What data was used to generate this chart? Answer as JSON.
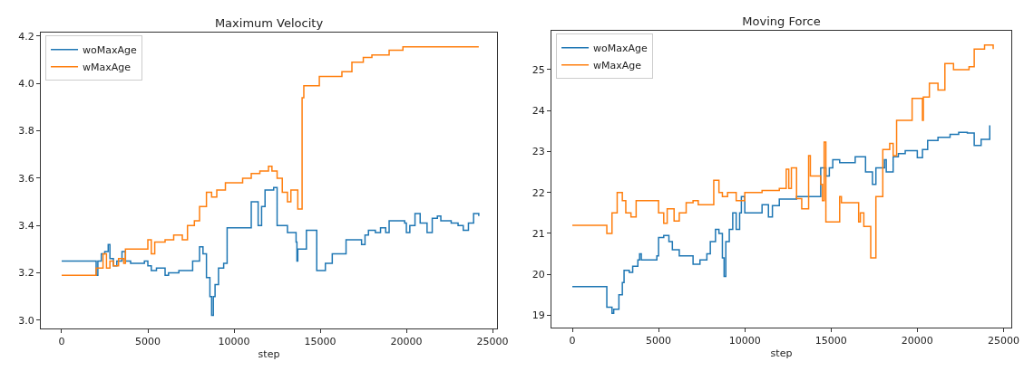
{
  "chart_data": [
    {
      "type": "step",
      "title": "Maximum Velocity",
      "xlabel": "step",
      "xlim": [
        -1210,
        25260
      ],
      "xticks": [
        0,
        5000,
        10000,
        15000,
        20000,
        25000
      ],
      "ylim": [
        2.965,
        4.215
      ],
      "yticks": [
        {
          "value": 3,
          "label": "3.0"
        },
        3.2,
        3.4,
        3.6,
        3.8,
        {
          "value": 4,
          "label": "4.0"
        },
        4.2
      ],
      "grid": false,
      "legend": "top left",
      "series": [
        {
          "name": "woMaxAge",
          "color": "#1f77b4",
          "x": [
            0,
            2000,
            2100,
            2300,
            2500,
            2700,
            2800,
            3000,
            3200,
            3500,
            3700,
            4000,
            4800,
            5000,
            5200,
            5500,
            6000,
            6200,
            6800,
            7200,
            7600,
            8000,
            8200,
            8400,
            8600,
            8700,
            8800,
            8900,
            9100,
            9400,
            9600,
            10800,
            11000,
            11400,
            11600,
            11800,
            12300,
            12500,
            13100,
            13600,
            13650,
            13700,
            14200,
            14600,
            14800,
            15300,
            15700,
            16500,
            17400,
            17600,
            17800,
            18200,
            18500,
            18800,
            19000,
            19900,
            20000,
            20200,
            20500,
            20800,
            21200,
            21500,
            21800,
            22000,
            22600,
            23000,
            23300,
            23600,
            23900,
            24200
          ],
          "values": [
            3.25,
            3.19,
            3.25,
            3.28,
            3.29,
            3.32,
            3.26,
            3.23,
            3.25,
            3.29,
            3.25,
            3.24,
            3.25,
            3.23,
            3.21,
            3.22,
            3.19,
            3.2,
            3.21,
            3.21,
            3.25,
            3.31,
            3.28,
            3.18,
            3.1,
            3.02,
            3.1,
            3.15,
            3.22,
            3.24,
            3.39,
            3.39,
            3.5,
            3.4,
            3.48,
            3.55,
            3.56,
            3.4,
            3.37,
            3.33,
            3.25,
            3.3,
            3.38,
            3.38,
            3.21,
            3.24,
            3.28,
            3.34,
            3.32,
            3.36,
            3.38,
            3.37,
            3.39,
            3.37,
            3.42,
            3.41,
            3.37,
            3.4,
            3.45,
            3.41,
            3.37,
            3.43,
            3.44,
            3.42,
            3.41,
            3.4,
            3.38,
            3.41,
            3.45,
            3.44
          ]
        },
        {
          "name": "wMaxAge",
          "color": "#ff7f0e",
          "x": [
            0,
            2000,
            2400,
            2600,
            2800,
            3000,
            3300,
            3600,
            3700,
            5000,
            5200,
            5400,
            6000,
            6500,
            7000,
            7300,
            7700,
            8000,
            8400,
            8700,
            9000,
            9500,
            10000,
            10500,
            11000,
            11500,
            12000,
            12200,
            12500,
            12800,
            13100,
            13300,
            13700,
            13950,
            14050,
            14950,
            16260,
            16840,
            17500,
            18000,
            19000,
            19800,
            24200
          ],
          "values": [
            3.19,
            3.22,
            3.28,
            3.22,
            3.25,
            3.23,
            3.26,
            3.24,
            3.3,
            3.34,
            3.28,
            3.33,
            3.34,
            3.36,
            3.34,
            3.4,
            3.42,
            3.48,
            3.54,
            3.52,
            3.55,
            3.58,
            3.58,
            3.6,
            3.62,
            3.63,
            3.65,
            3.63,
            3.6,
            3.54,
            3.5,
            3.55,
            3.47,
            3.94,
            3.99,
            4.03,
            4.05,
            4.09,
            4.11,
            4.12,
            4.14,
            4.155,
            4.155
          ]
        }
      ]
    },
    {
      "type": "step",
      "title": "Moving Force",
      "xlabel": "step",
      "xlim": [
        -1210,
        25450
      ],
      "xticks": [
        0,
        5000,
        10000,
        15000,
        20000,
        25000
      ],
      "ylim": [
        18.7,
        25.95
      ],
      "yticks": [
        19,
        20,
        21,
        22,
        23,
        24,
        25
      ],
      "grid": false,
      "legend": "top left",
      "series": [
        {
          "name": "woMaxAge",
          "color": "#1f77b4",
          "x": [
            0,
            2000,
            2300,
            2400,
            2700,
            2900,
            3000,
            3300,
            3500,
            3800,
            3900,
            4000,
            4500,
            4900,
            5000,
            5300,
            5600,
            5800,
            6200,
            6600,
            7000,
            7400,
            7800,
            8000,
            8300,
            8500,
            8700,
            8800,
            8900,
            9100,
            9300,
            9500,
            9700,
            9800,
            10000,
            11000,
            11370,
            11600,
            12000,
            12600,
            13000,
            13800,
            14400,
            14700,
            14900,
            15100,
            15500,
            16400,
            17000,
            17400,
            17600,
            18100,
            18200,
            18600,
            18900,
            19300,
            20000,
            20300,
            20600,
            21200,
            21900,
            22400,
            22900,
            23300,
            23700,
            24200
          ],
          "values": [
            19.7,
            19.2,
            19.05,
            19.15,
            19.5,
            19.8,
            20.1,
            20.05,
            20.2,
            20.35,
            20.5,
            20.35,
            20.35,
            20.45,
            20.9,
            20.95,
            20.8,
            20.6,
            20.45,
            20.45,
            20.25,
            20.35,
            20.5,
            20.8,
            21.1,
            21.0,
            20.4,
            19.95,
            20.8,
            21.1,
            21.5,
            21.1,
            21.5,
            21.9,
            21.5,
            21.7,
            21.4,
            21.68,
            21.84,
            21.84,
            21.9,
            21.9,
            22.6,
            22.4,
            22.6,
            22.8,
            22.73,
            22.87,
            22.5,
            22.2,
            22.6,
            22.8,
            22.5,
            22.87,
            22.95,
            23.02,
            22.85,
            23.05,
            23.27,
            23.35,
            23.42,
            23.47,
            23.45,
            23.15,
            23.3,
            23.64
          ]
        },
        {
          "name": "wMaxAge",
          "color": "#ff7f0e",
          "x": [
            0,
            2000,
            2300,
            2600,
            2900,
            3100,
            3400,
            3700,
            4900,
            5000,
            5300,
            5500,
            5900,
            6200,
            6600,
            7000,
            7300,
            7900,
            8200,
            8500,
            8700,
            9000,
            9500,
            10000,
            11000,
            12000,
            12400,
            12550,
            12700,
            13000,
            13300,
            13700,
            13800,
            14400,
            14500,
            14600,
            14700,
            15500,
            15600,
            16600,
            16700,
            16900,
            17300,
            17600,
            18000,
            18400,
            18600,
            18800,
            19700,
            20300,
            20350,
            20700,
            21200,
            21600,
            22100,
            23000,
            23300,
            23900,
            24400
          ],
          "values": [
            21.2,
            21.0,
            21.5,
            22.0,
            21.8,
            21.5,
            21.4,
            21.8,
            21.8,
            21.5,
            21.25,
            21.6,
            21.3,
            21.5,
            21.75,
            21.8,
            21.7,
            21.7,
            22.3,
            22.0,
            21.9,
            22.0,
            21.8,
            22.0,
            22.05,
            22.1,
            22.57,
            22.1,
            22.6,
            21.85,
            21.6,
            22.9,
            22.4,
            22.2,
            21.8,
            23.23,
            21.28,
            21.9,
            21.75,
            21.28,
            21.5,
            21.17,
            20.4,
            21.9,
            23.05,
            23.2,
            22.9,
            23.76,
            24.3,
            23.76,
            24.33,
            24.67,
            24.5,
            25.15,
            25.0,
            25.07,
            25.5,
            25.6,
            25.5
          ]
        }
      ]
    }
  ]
}
